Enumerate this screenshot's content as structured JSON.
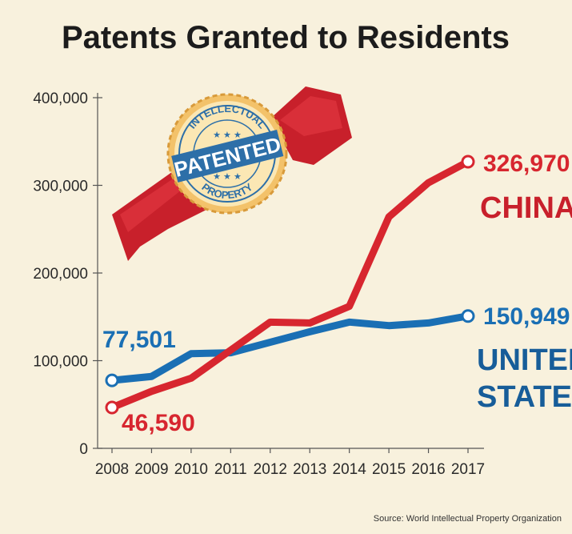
{
  "chart_data": {
    "type": "line",
    "title": "Patents Granted to Residents",
    "xlabel": "",
    "ylabel": "",
    "x": [
      "2008",
      "2009",
      "2010",
      "2011",
      "2012",
      "2013",
      "2014",
      "2015",
      "2016",
      "2017"
    ],
    "ylim": [
      0,
      400000
    ],
    "yticks": [
      0,
      100000,
      200000,
      300000,
      400000
    ],
    "ytick_labels": [
      "0",
      "100,000",
      "200,000",
      "300,000",
      "400,000"
    ],
    "series": [
      {
        "name": "CHINA",
        "color": "#d7262f",
        "values": [
          46590,
          65000,
          80000,
          112000,
          144000,
          143000,
          162000,
          264000,
          303000,
          326970
        ],
        "start_label": "46,590",
        "end_label": "326,970",
        "legend_lines": [
          "CHINA"
        ]
      },
      {
        "name": "UNITED STATES",
        "color": "#1a6fb4",
        "values": [
          77501,
          82000,
          108000,
          109000,
          121000,
          133000,
          144000,
          140000,
          143000,
          150949
        ],
        "start_label": "77,501",
        "end_label": "150,949",
        "legend_lines": [
          "UNITED",
          "STATES"
        ]
      }
    ],
    "source": "Source: World Intellectual Property Organization"
  },
  "seal": {
    "top_text": "INTELLECTUAL",
    "center_text": "PATENTED",
    "bottom_text": "PROPERTY",
    "stars": "★ ★ ★"
  },
  "colors": {
    "background": "#f8f1dd",
    "china": "#d7262f",
    "us": "#1a6fb4"
  }
}
